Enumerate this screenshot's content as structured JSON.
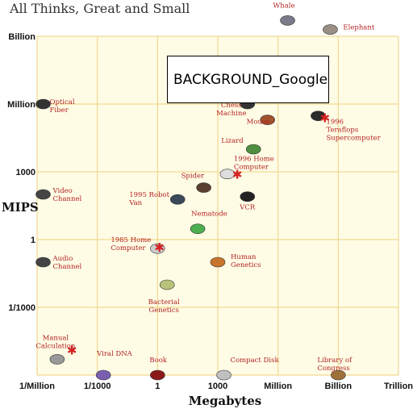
{
  "overlay_text": "BACKGROUND_Google",
  "chart_data": {
    "type": "scatter",
    "title": "All Thinks, Great and Small",
    "xlabel": "Megabytes",
    "ylabel": "MIPS",
    "x_scale": "log",
    "y_scale": "log",
    "x_ticks": [
      {
        "value": 1e-06,
        "label": "1/Million"
      },
      {
        "value": 0.001,
        "label": "1/1000"
      },
      {
        "value": 1,
        "label": "1"
      },
      {
        "value": 1000.0,
        "label": "1000"
      },
      {
        "value": 1000000.0,
        "label": "Million"
      },
      {
        "value": 1000000000.0,
        "label": "Billion"
      },
      {
        "value": 1000000000000.0,
        "label": "Trillion"
      }
    ],
    "y_ticks": [
      {
        "value": 0.001,
        "label": "1/1000"
      },
      {
        "value": 1,
        "label": "1"
      },
      {
        "value": 1000.0,
        "label": "1000"
      },
      {
        "value": 1000000.0,
        "label": "Million"
      },
      {
        "value": 1000000000.0,
        "label": "Billion"
      }
    ],
    "grid": true,
    "points": [
      {
        "label": "Whale",
        "x": 3000000.0,
        "y": 5000000000.0,
        "icon": "whale-icon",
        "color": "#7a7a8a"
      },
      {
        "label": "Elephant",
        "x": 400000000.0,
        "y": 2000000000.0,
        "icon": "elephant-icon",
        "color": "#9a8f85"
      },
      {
        "label": "Chess Machine",
        "x": 30000.0,
        "y": 1000000.0,
        "icon": "chess-machine-icon",
        "color": "#333333"
      },
      {
        "label": "Mouse",
        "x": 300000.0,
        "y": 200000.0,
        "icon": "mouse-icon",
        "color": "#a0522d"
      },
      {
        "label": "1996 Teraflops Supercomputer",
        "x": 100000000.0,
        "y": 300000.0,
        "icon": "supercomputer-icon",
        "color": "#2a2a2a"
      },
      {
        "label": "Optical Fiber",
        "x": 2e-06,
        "y": 1000000.0,
        "icon": "optical-fiber-icon",
        "color": "#333333"
      },
      {
        "label": "Lizard",
        "x": 60000.0,
        "y": 10000.0,
        "icon": "lizard-icon",
        "color": "#4f8f3f"
      },
      {
        "label": "1996 Home Computer",
        "x": 3000.0,
        "y": 800,
        "icon": "home-computer-icon",
        "color": "#dddddd"
      },
      {
        "label": "Spider",
        "x": 200,
        "y": 200,
        "icon": "spider-icon",
        "color": "#5a4030"
      },
      {
        "label": "VCR",
        "x": 30000.0,
        "y": 80,
        "icon": "vcr-icon",
        "color": "#222222"
      },
      {
        "label": "Video Channel",
        "x": 2e-06,
        "y": 100,
        "icon": "video-channel-icon",
        "color": "#444444"
      },
      {
        "label": "1995 Robot Van",
        "x": 10,
        "y": 60,
        "icon": "robot-van-icon",
        "color": "#3a4a5a"
      },
      {
        "label": "Nematode",
        "x": 100,
        "y": 3,
        "icon": "nematode-icon",
        "color": "#4caf50"
      },
      {
        "label": "1985 Home Computer",
        "x": 1,
        "y": 0.4,
        "icon": "mac-computer-icon",
        "color": "#cccccc"
      },
      {
        "label": "Audio Channel",
        "x": 2e-06,
        "y": 0.1,
        "icon": "audio-channel-icon",
        "color": "#444444"
      },
      {
        "label": "Human Genetics",
        "x": 1000.0,
        "y": 0.1,
        "icon": "human-genetics-icon",
        "color": "#c8742a"
      },
      {
        "label": "Bacterial Genetics",
        "x": 3,
        "y": 0.01,
        "icon": "bacterial-genetics-icon",
        "color": "#b9c27a"
      },
      {
        "label": "Manual Calculation",
        "x": 1e-05,
        "y": 5e-06,
        "icon": "manual-calculation-icon",
        "color": "#999999"
      },
      {
        "label": "Viral DNA",
        "x": 0.002,
        "y": 1e-06,
        "icon": "viral-dna-icon",
        "color": "#7a5fb0"
      },
      {
        "label": "Book",
        "x": 1,
        "y": 1e-06,
        "icon": "book-icon",
        "color": "#8b1a1a"
      },
      {
        "label": "Compact Disk",
        "x": 2000.0,
        "y": 1e-06,
        "icon": "compact-disk-icon",
        "color": "#c0c0c0"
      },
      {
        "label": "Library of Congress",
        "x": 1000000000.0,
        "y": 1e-06,
        "icon": "library-of-congress-icon",
        "color": "#a0703a"
      }
    ]
  }
}
